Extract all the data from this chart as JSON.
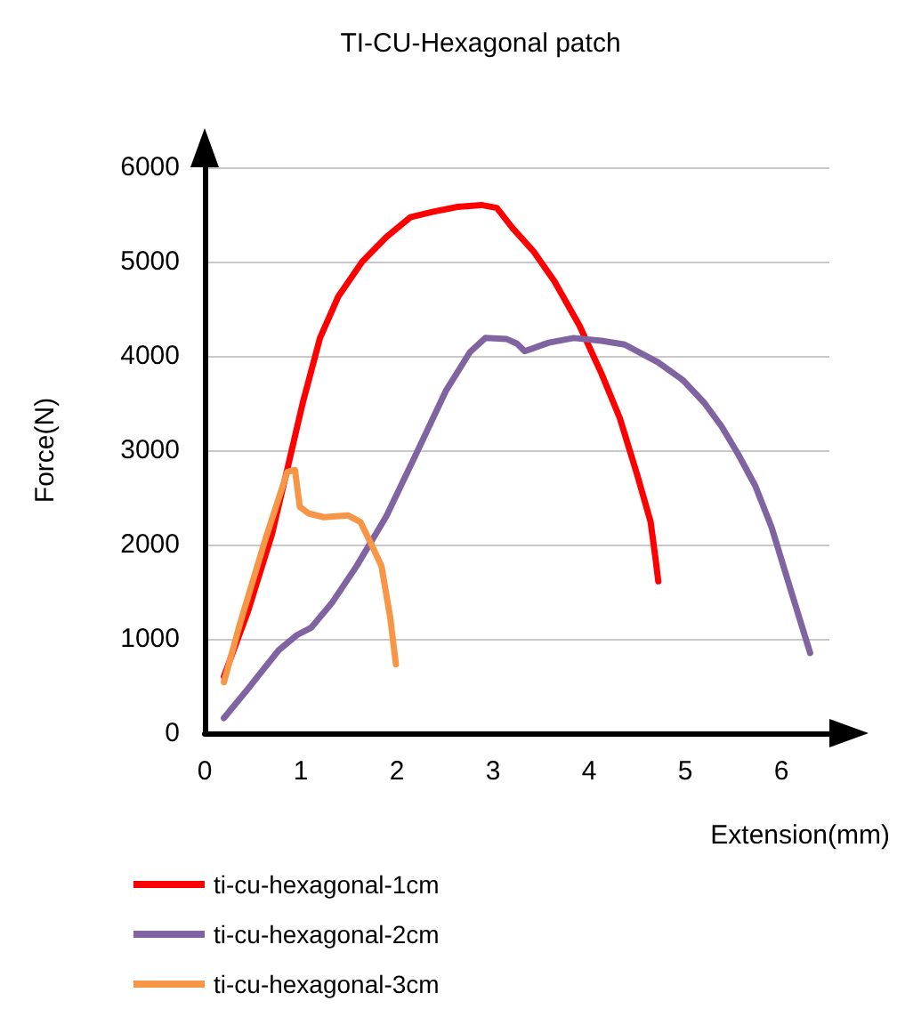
{
  "chart_data": {
    "type": "line",
    "title": "TI-CU-Hexagonal patch",
    "xlabel": "Extension(mm)",
    "ylabel": "Force(N)",
    "xlim": [
      0,
      6.5
    ],
    "xticks": [
      0,
      1,
      2,
      3,
      4,
      5,
      6
    ],
    "ylim": [
      0,
      6000
    ],
    "yticks": [
      0,
      1000,
      2000,
      3000,
      4000,
      5000,
      6000
    ],
    "grid": "y",
    "legend": "bottom left",
    "marker": "none",
    "line_style": "solid",
    "series": [
      {
        "name": "ti-cu-hexagonal-1cm",
        "color": "#ff0000",
        "x": [
          0.2,
          0.45,
          0.7,
          0.86,
          1.02,
          1.2,
          1.39,
          1.64,
          1.89,
          2.14,
          2.38,
          2.63,
          2.88,
          3.04,
          3.2,
          3.42,
          3.64,
          3.9,
          4.13,
          4.32,
          4.5,
          4.64,
          4.69,
          4.72
        ],
        "values": [
          600,
          1290,
          2110,
          2800,
          3500,
          4190,
          4630,
          5000,
          5260,
          5470,
          5530,
          5580,
          5600,
          5570,
          5360,
          5110,
          4790,
          4320,
          3810,
          3340,
          2740,
          2240,
          1860,
          1610
        ]
      },
      {
        "name": "ti-cu-hexagonal-2cm",
        "color": "#8064a2",
        "x": [
          0.2,
          0.45,
          0.77,
          0.96,
          1.11,
          1.33,
          1.58,
          1.89,
          2.2,
          2.51,
          2.76,
          2.92,
          3.14,
          3.25,
          3.33,
          3.58,
          3.84,
          4.13,
          4.37,
          4.72,
          4.98,
          5.2,
          5.38,
          5.55,
          5.73,
          5.9,
          6.07,
          6.3
        ],
        "values": [
          160,
          470,
          880,
          1040,
          1120,
          1390,
          1770,
          2300,
          2960,
          3630,
          4040,
          4190,
          4180,
          4130,
          4050,
          4140,
          4190,
          4160,
          4120,
          3930,
          3740,
          3500,
          3250,
          2960,
          2620,
          2180,
          1610,
          850
        ]
      },
      {
        "name": "ti-cu-hexagonal-3cm",
        "color": "#f79646",
        "x": [
          0.2,
          0.37,
          0.63,
          0.86,
          0.94,
          0.99,
          1.08,
          1.24,
          1.49,
          1.62,
          1.74,
          1.84,
          1.93,
          1.96,
          1.99
        ],
        "values": [
          540,
          1170,
          2050,
          2770,
          2790,
          2400,
          2330,
          2290,
          2310,
          2240,
          1990,
          1770,
          1230,
          980,
          730
        ]
      }
    ]
  }
}
